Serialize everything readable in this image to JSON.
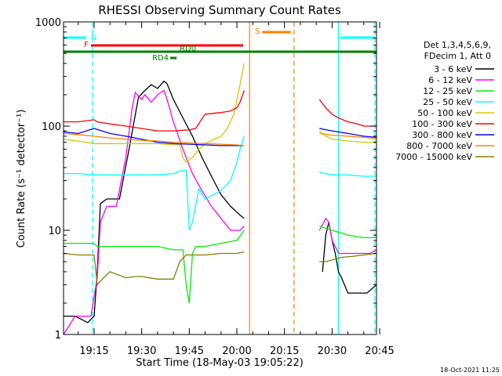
{
  "chart_data": {
    "type": "line",
    "title": "RHESSI Observing Summary Count Rates",
    "xlabel": "Start Time (18-May-03 19:05:22)",
    "ylabel": "Count Rate (s⁻¹ detector⁻¹)",
    "x_range_min": [
      5.37,
      104.0
    ],
    "y_range": [
      1,
      1000
    ],
    "yscale": "log",
    "x_ticks": [
      {
        "label": "19:15",
        "min": 15
      },
      {
        "label": "19:30",
        "min": 30
      },
      {
        "label": "19:45",
        "min": 45
      },
      {
        "label": "20:00",
        "min": 60
      },
      {
        "label": "20:15",
        "min": 75
      },
      {
        "label": "20:30",
        "min": 90
      },
      {
        "label": "20:45",
        "min": 105
      }
    ],
    "y_ticks": [
      {
        "label": "1",
        "v": 1
      },
      {
        "label": "10",
        "v": 10
      },
      {
        "label": "100",
        "v": 100
      },
      {
        "label": "1000",
        "v": 1000
      }
    ],
    "legend_header": [
      "Det 1,3,4,5,6,9,",
      "FDecim 1, Att 0"
    ],
    "legend_placement": "right",
    "series": [
      {
        "name": "3 - 6 keV",
        "color": "#000000",
        "x": [
          5.4,
          9,
          13,
          15,
          16,
          17,
          19,
          23,
          26,
          29,
          31,
          33,
          35,
          37,
          38,
          40,
          43,
          46,
          49,
          52,
          55,
          58,
          61,
          62.3,
          62.4,
          85,
          87,
          88,
          89,
          90,
          91,
          92,
          93,
          95,
          98,
          101,
          104
        ],
        "y": [
          1.5,
          1.5,
          1.3,
          1.5,
          4,
          18,
          20,
          20,
          60,
          190,
          220,
          250,
          230,
          270,
          255,
          180,
          120,
          80,
          50,
          33,
          22,
          17,
          14,
          13,
          null,
          null,
          4,
          9,
          12,
          8,
          6,
          4,
          3.5,
          2.5,
          2.5,
          2.5,
          3
        ]
      },
      {
        "name": "6 - 12 keV",
        "color": "#ff00ff",
        "x": [
          5.4,
          9,
          12,
          14,
          16,
          17,
          19,
          22,
          25,
          27,
          28,
          30,
          31,
          33,
          35,
          37,
          38,
          40,
          43,
          46,
          49,
          52,
          55,
          58,
          61,
          62.3,
          62.4,
          85,
          86,
          88,
          89,
          90,
          91,
          92,
          94,
          97,
          100,
          102,
          104
        ],
        "y": [
          1,
          1.5,
          1.5,
          1.5,
          3.5,
          12,
          17,
          17,
          50,
          150,
          210,
          180,
          200,
          170,
          200,
          220,
          180,
          110,
          60,
          35,
          24,
          17,
          13,
          10,
          10,
          11,
          null,
          null,
          10,
          13,
          12,
          8,
          7,
          6,
          6,
          6,
          6,
          6,
          6.5
        ]
      },
      {
        "name": "12 - 25 keV",
        "color": "#00ee00",
        "x": [
          5.4,
          10,
          15,
          16,
          20,
          25,
          30,
          35,
          40,
          43,
          44,
          45,
          46,
          47,
          50,
          55,
          60,
          62.3,
          62.4,
          85,
          86,
          90,
          95,
          100,
          104
        ],
        "y": [
          7.5,
          7.5,
          7.5,
          7,
          7,
          7,
          7,
          7,
          6.5,
          6.5,
          3,
          2,
          6,
          7,
          7,
          7.5,
          8,
          10,
          null,
          null,
          11,
          10,
          9,
          8.5,
          8.5
        ]
      },
      {
        "name": "25 - 50 keV",
        "color": "#00ffff",
        "x": [
          5.4,
          10,
          15,
          16,
          20,
          25,
          30,
          35,
          40,
          42,
          44,
          45,
          46,
          48,
          50,
          55,
          58,
          60,
          61,
          62.3,
          62.4,
          85,
          86,
          90,
          95,
          100,
          104
        ],
        "y": [
          35,
          35,
          34,
          34,
          34,
          34,
          34,
          34,
          35,
          37,
          38,
          10,
          12,
          25,
          20,
          24,
          30,
          45,
          60,
          80,
          null,
          null,
          36,
          34,
          34,
          33,
          33
        ]
      },
      {
        "name": "50 - 100 keV",
        "color": "#cccc00",
        "x": [
          5.4,
          10,
          15,
          16,
          20,
          25,
          30,
          35,
          40,
          42,
          43,
          44,
          46,
          48,
          50,
          55,
          57,
          59,
          60,
          61,
          62.3,
          62.4,
          85,
          86,
          88,
          90,
          95,
          100,
          104
        ],
        "y": [
          75,
          72,
          68,
          68,
          68,
          68,
          68,
          68,
          66,
          66,
          50,
          45,
          50,
          60,
          68,
          80,
          95,
          130,
          180,
          250,
          400,
          null,
          null,
          90,
          80,
          75,
          72,
          70,
          70
        ]
      },
      {
        "name": "100 - 300 keV",
        "color": "#ff0000",
        "x": [
          5.4,
          10,
          15,
          16,
          20,
          25,
          30,
          35,
          40,
          45,
          47,
          50,
          55,
          58,
          60,
          61,
          62.3,
          62.4,
          85,
          86,
          88,
          90,
          92,
          95,
          98,
          100,
          104
        ],
        "y": [
          110,
          110,
          115,
          110,
          105,
          100,
          95,
          90,
          90,
          92,
          95,
          130,
          135,
          140,
          150,
          170,
          220,
          null,
          null,
          180,
          150,
          130,
          120,
          110,
          105,
          100,
          100
        ]
      },
      {
        "name": "300 - 800 keV",
        "color": "#0000ff",
        "x": [
          5.4,
          10,
          15,
          20,
          25,
          30,
          35,
          40,
          45,
          50,
          55,
          60,
          62.3,
          62.4,
          85,
          86,
          90,
          95,
          100,
          104
        ],
        "y": [
          88,
          85,
          95,
          85,
          80,
          75,
          70,
          68,
          67,
          66,
          65,
          65,
          65,
          null,
          null,
          95,
          90,
          85,
          80,
          78
        ]
      },
      {
        "name": "800 - 7000 keV",
        "color": "#ff8000",
        "x": [
          5.4,
          10,
          15,
          20,
          25,
          30,
          35,
          40,
          45,
          50,
          55,
          60,
          62.3,
          62.4,
          85,
          86,
          90,
          95,
          100,
          104
        ],
        "y": [
          85,
          83,
          80,
          77,
          75,
          73,
          72,
          70,
          69,
          68,
          67,
          66,
          65,
          null,
          null,
          85,
          82,
          80,
          78,
          76
        ]
      },
      {
        "name": "7000 - 15000 keV",
        "color": "#808000",
        "x": [
          5.4,
          10,
          15,
          16,
          18,
          20,
          25,
          28,
          30,
          35,
          40,
          42,
          44,
          46,
          50,
          55,
          60,
          62.3,
          62.4,
          85,
          86,
          88,
          90,
          93,
          96,
          100,
          104
        ],
        "y": [
          6,
          5.8,
          5.8,
          3,
          3.5,
          4,
          3.5,
          3.6,
          3.6,
          3.4,
          3.4,
          5,
          5.8,
          5.8,
          5.8,
          6,
          6,
          6.2,
          null,
          null,
          5,
          5,
          5.2,
          5.5,
          5.6,
          5.8,
          6
        ]
      }
    ],
    "flag_bars": [
      {
        "label": "N",
        "color": "#00ffff",
        "segments": [
          [
            5.4,
            12.5
          ],
          [
            92.5,
            103.5
          ]
        ]
      },
      {
        "label": "F",
        "color": "#ff0000",
        "segments": [
          [
            14,
            62
          ]
        ]
      },
      {
        "label": "S",
        "color": "#ff8000",
        "segments": [
          [
            68,
            77
          ]
        ]
      },
      {
        "label": "RD0",
        "color": "#008000",
        "segments": [
          [
            5.4,
            104
          ]
        ]
      },
      {
        "label": "RD4",
        "color": "#008000",
        "segments": [
          [
            39,
            41
          ]
        ]
      }
    ],
    "vertical_markers": [
      {
        "min": 14.5,
        "color": "#00ffff",
        "style": "dashed"
      },
      {
        "min": 64,
        "color": "#ff8000",
        "style": "solid"
      },
      {
        "min": 78,
        "color": "#ff8000",
        "style": "dashed"
      },
      {
        "min": 92,
        "color": "#00ffff",
        "style": "solid"
      },
      {
        "min": 103.5,
        "color": "#00ffff",
        "style": "dashed"
      }
    ],
    "timestamp": "18-Oct-2021 11:25"
  }
}
